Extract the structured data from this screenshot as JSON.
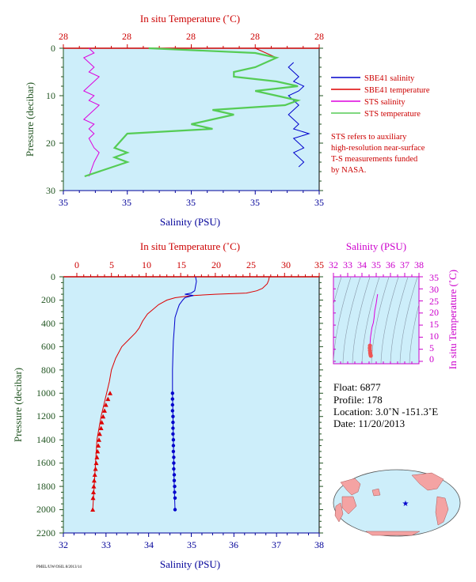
{
  "top_panel": {
    "title_top": "In situ Temperature (˚C)",
    "xlabel": "Salinity (PSU)",
    "ylabel": "Pressure (decibar)",
    "temp_tick_labels": [
      "28",
      "28",
      "28",
      "28",
      "28"
    ],
    "sal_tick_labels": [
      "35",
      "35",
      "35",
      "35",
      "35"
    ],
    "pressure_tick_labels": [
      "0",
      "10",
      "20",
      "30"
    ],
    "legend": [
      {
        "label": "SBE41 salinity",
        "color": "#0000cc"
      },
      {
        "label": "SBE41 temperature",
        "color": "#dd0000"
      },
      {
        "label": "STS salinity",
        "color": "#dd00dd"
      },
      {
        "label": "STS temperature",
        "color": "#55cc55"
      }
    ],
    "note_lines": [
      "STS refers to auxiliary",
      "high-resolution near-surface",
      "T-S measurements funded",
      "by NASA."
    ]
  },
  "bottom_panel": {
    "title_top": "In situ Temperature (˚C)",
    "xlabel": "Salinity (PSU)",
    "ylabel": "Pressure (decibar)",
    "temp_tick_labels": [
      "0",
      "5",
      "10",
      "15",
      "20",
      "25",
      "30",
      "35"
    ],
    "sal_tick_labels": [
      "32",
      "33",
      "34",
      "35",
      "36",
      "37",
      "38"
    ],
    "pressure_tick_labels": [
      "0",
      "200",
      "400",
      "600",
      "800",
      "1000",
      "1200",
      "1400",
      "1600",
      "1800",
      "2000",
      "2200"
    ]
  },
  "ts_panel": {
    "title_top": "Salinity (PSU)",
    "ylabel": "In situ Temperature (˚C)",
    "sal_tick_labels": [
      "32",
      "33",
      "34",
      "35",
      "36",
      "37",
      "38"
    ],
    "temp_tick_labels": [
      "0",
      "5",
      "10",
      "15",
      "20",
      "25",
      "30",
      "35"
    ]
  },
  "info": {
    "float": "Float:  6877",
    "profile": "Profile:  178",
    "location": "Location:  3.0˚N  -151.3˚E",
    "date": "Date:  11/20/2013"
  },
  "footer_text": "PMEL/UW/OSIL 8/2013/14",
  "colors": {
    "panel_bg": "#cdeefa",
    "salinity": "#0000cc",
    "temperature": "#dd0000",
    "sts_salinity": "#dd00dd",
    "sts_temperature": "#55cc55",
    "axis_temp": "#cc0000",
    "axis_sal": "#000099",
    "axis_pressure": "#225522",
    "ts_axis": "#cc00cc"
  },
  "chart_data": [
    {
      "type": "line",
      "panel": "top",
      "xlim_salinity": [
        34.6,
        35.1
      ],
      "xlim_temperature": [
        27.6,
        28.2
      ],
      "ylim_pressure": [
        30,
        0
      ],
      "series": [
        {
          "name": "SBE41 salinity",
          "x": [
            35.05,
            35.04,
            35.05,
            35.06,
            35.05,
            35.07,
            35.06,
            35.04,
            35.05,
            35.06,
            35.05,
            35.04,
            35.05,
            35.06,
            35.05,
            35.08,
            35.05,
            35.06,
            35.07,
            35.05,
            35.06,
            35.07,
            35.06
          ],
          "y": [
            3,
            4,
            5,
            6,
            7,
            8,
            9,
            10,
            11,
            12,
            13,
            14,
            15,
            16,
            17,
            18,
            19,
            20,
            21,
            22,
            23,
            24,
            25
          ]
        },
        {
          "name": "SBE41 temperature",
          "x": [
            28.05,
            28.1,
            28.05,
            28.0,
            28.0,
            28.1,
            28.15,
            28.05,
            28.1,
            28.15,
            28.12,
            27.95,
            28.0,
            27.95,
            27.9,
            27.95,
            27.75,
            27.72,
            27.75,
            27.72,
            27.75,
            27.65
          ],
          "y": [
            0,
            2,
            4,
            5,
            6,
            7,
            8,
            9,
            10,
            11,
            12,
            13,
            14,
            15,
            16,
            17,
            18,
            21,
            22,
            23,
            24,
            27
          ]
        },
        {
          "name": "STS salinity",
          "x": [
            34.65,
            34.66,
            34.64,
            34.65,
            34.66,
            34.65,
            34.67,
            34.66,
            34.65,
            34.64,
            34.66,
            34.65,
            34.67,
            34.66,
            34.65,
            34.64,
            34.66,
            34.65,
            34.66,
            34.65,
            34.66,
            34.67,
            34.66,
            34.65
          ],
          "y": [
            0,
            1,
            2,
            3,
            4,
            5,
            6,
            7,
            8,
            9,
            10,
            11,
            12,
            13,
            14,
            15,
            16,
            17,
            18,
            19,
            21,
            22,
            24,
            27
          ]
        },
        {
          "name": "STS temperature",
          "x": [
            27.8,
            28.05,
            28.1,
            28.05,
            28.0,
            28.0,
            28.1,
            28.15,
            28.05,
            28.1,
            28.15,
            28.12,
            27.95,
            28.0,
            27.95,
            27.9,
            27.95,
            27.75,
            27.72,
            27.75,
            27.72,
            27.75,
            27.65
          ],
          "y": [
            0,
            1,
            2,
            4,
            5,
            6,
            7,
            8,
            9,
            10,
            11,
            12,
            13,
            14,
            15,
            16,
            17,
            18,
            21,
            22,
            23,
            24,
            27
          ]
        }
      ]
    },
    {
      "type": "line",
      "panel": "bottom",
      "xlim_salinity": [
        32,
        38
      ],
      "xlim_temperature": [
        0,
        35
      ],
      "ylim_pressure": [
        2200,
        0
      ],
      "series": [
        {
          "name": "temperature",
          "temperature": [
            27.8,
            27.7,
            27.5,
            26.8,
            26.0,
            24.5,
            20.0,
            17.0,
            15.5,
            14.2,
            13.0,
            11.8,
            11.0,
            10.2,
            9.5,
            9.0,
            8.5,
            7.5,
            6.5,
            5.6,
            5.0,
            4.7,
            4.3,
            3.9,
            3.5,
            3.2,
            2.9,
            2.7,
            2.5,
            2.3
          ],
          "pressure": [
            0,
            30,
            60,
            100,
            120,
            140,
            150,
            160,
            170,
            180,
            200,
            240,
            280,
            320,
            380,
            440,
            480,
            540,
            600,
            700,
            800,
            900,
            1000,
            1100,
            1200,
            1300,
            1400,
            1600,
            1800,
            2000
          ]
        },
        {
          "name": "salinity",
          "salinity": [
            35.1,
            35.12,
            35.1,
            35.08,
            35.0,
            34.85,
            35.05,
            34.95,
            34.85,
            34.8,
            34.72,
            34.68,
            34.62,
            34.6,
            34.58,
            34.57,
            34.56,
            34.56,
            34.57,
            34.58,
            34.59,
            34.6,
            34.61,
            34.62
          ],
          "pressure": [
            0,
            40,
            80,
            120,
            140,
            150,
            160,
            170,
            180,
            200,
            240,
            280,
            350,
            450,
            550,
            650,
            800,
            1000,
            1200,
            1400,
            1600,
            1800,
            1900,
            2000
          ]
        },
        {
          "name": "temperature samples",
          "temperature": [
            4.8,
            4.5,
            4.2,
            4.0,
            3.8,
            3.6,
            3.5,
            3.3,
            3.2,
            3.1,
            3.0,
            2.9,
            2.8,
            2.7,
            2.6,
            2.5,
            2.45,
            2.4,
            2.35,
            2.3
          ],
          "pressure": [
            1000,
            1050,
            1100,
            1150,
            1200,
            1250,
            1300,
            1350,
            1400,
            1450,
            1500,
            1550,
            1600,
            1650,
            1700,
            1750,
            1800,
            1850,
            1900,
            2000
          ]
        },
        {
          "name": "salinity samples",
          "salinity": [
            34.56,
            34.56,
            34.56,
            34.56,
            34.57,
            34.57,
            34.57,
            34.57,
            34.58,
            34.58,
            34.58,
            34.59,
            34.59,
            34.59,
            34.6,
            34.6,
            34.61,
            34.61,
            34.62,
            34.62
          ],
          "pressure": [
            1000,
            1050,
            1100,
            1150,
            1200,
            1250,
            1300,
            1350,
            1400,
            1450,
            1500,
            1550,
            1600,
            1650,
            1700,
            1750,
            1800,
            1850,
            1900,
            2000
          ]
        }
      ]
    },
    {
      "type": "scatter",
      "panel": "ts",
      "xlim_salinity": [
        32,
        38
      ],
      "ylim_temperature": [
        -2,
        35
      ],
      "series": [
        {
          "name": "T-S",
          "salinity": [
            35.1,
            35.05,
            35.0,
            34.9,
            34.85,
            34.8,
            34.7,
            34.65,
            34.6,
            34.58,
            34.56,
            34.55,
            34.56,
            34.58,
            34.6,
            34.62
          ],
          "temperature": [
            27.8,
            26,
            24,
            21,
            18,
            16,
            14,
            12,
            10,
            8,
            6.5,
            5.5,
            4.5,
            3.5,
            2.8,
            2.3
          ]
        }
      ]
    }
  ]
}
